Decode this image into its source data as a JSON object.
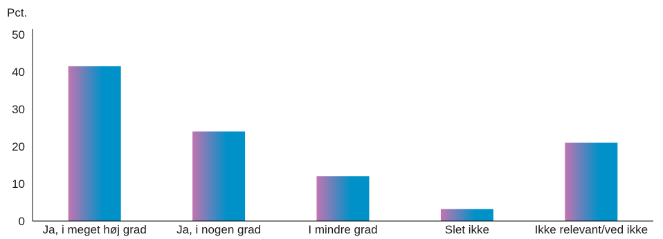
{
  "chart_data": {
    "type": "bar",
    "unit_label": "Pct.",
    "categories": [
      "Ja, i meget høj grad",
      "Ja, i nogen grad",
      "I mindre grad",
      "Slet ikke",
      "Ikke relevant/ved ikke"
    ],
    "values": [
      41.5,
      24,
      12,
      3.2,
      21
    ],
    "yticks": [
      "0",
      "10",
      "20",
      "30",
      "40",
      "50"
    ],
    "ylim": [
      0,
      50
    ],
    "grid": false,
    "colors": {
      "gradient_start": "#c274b0",
      "gradient_end": "#0091c8",
      "axis": "#000000",
      "text": "#1a1a1a"
    }
  }
}
